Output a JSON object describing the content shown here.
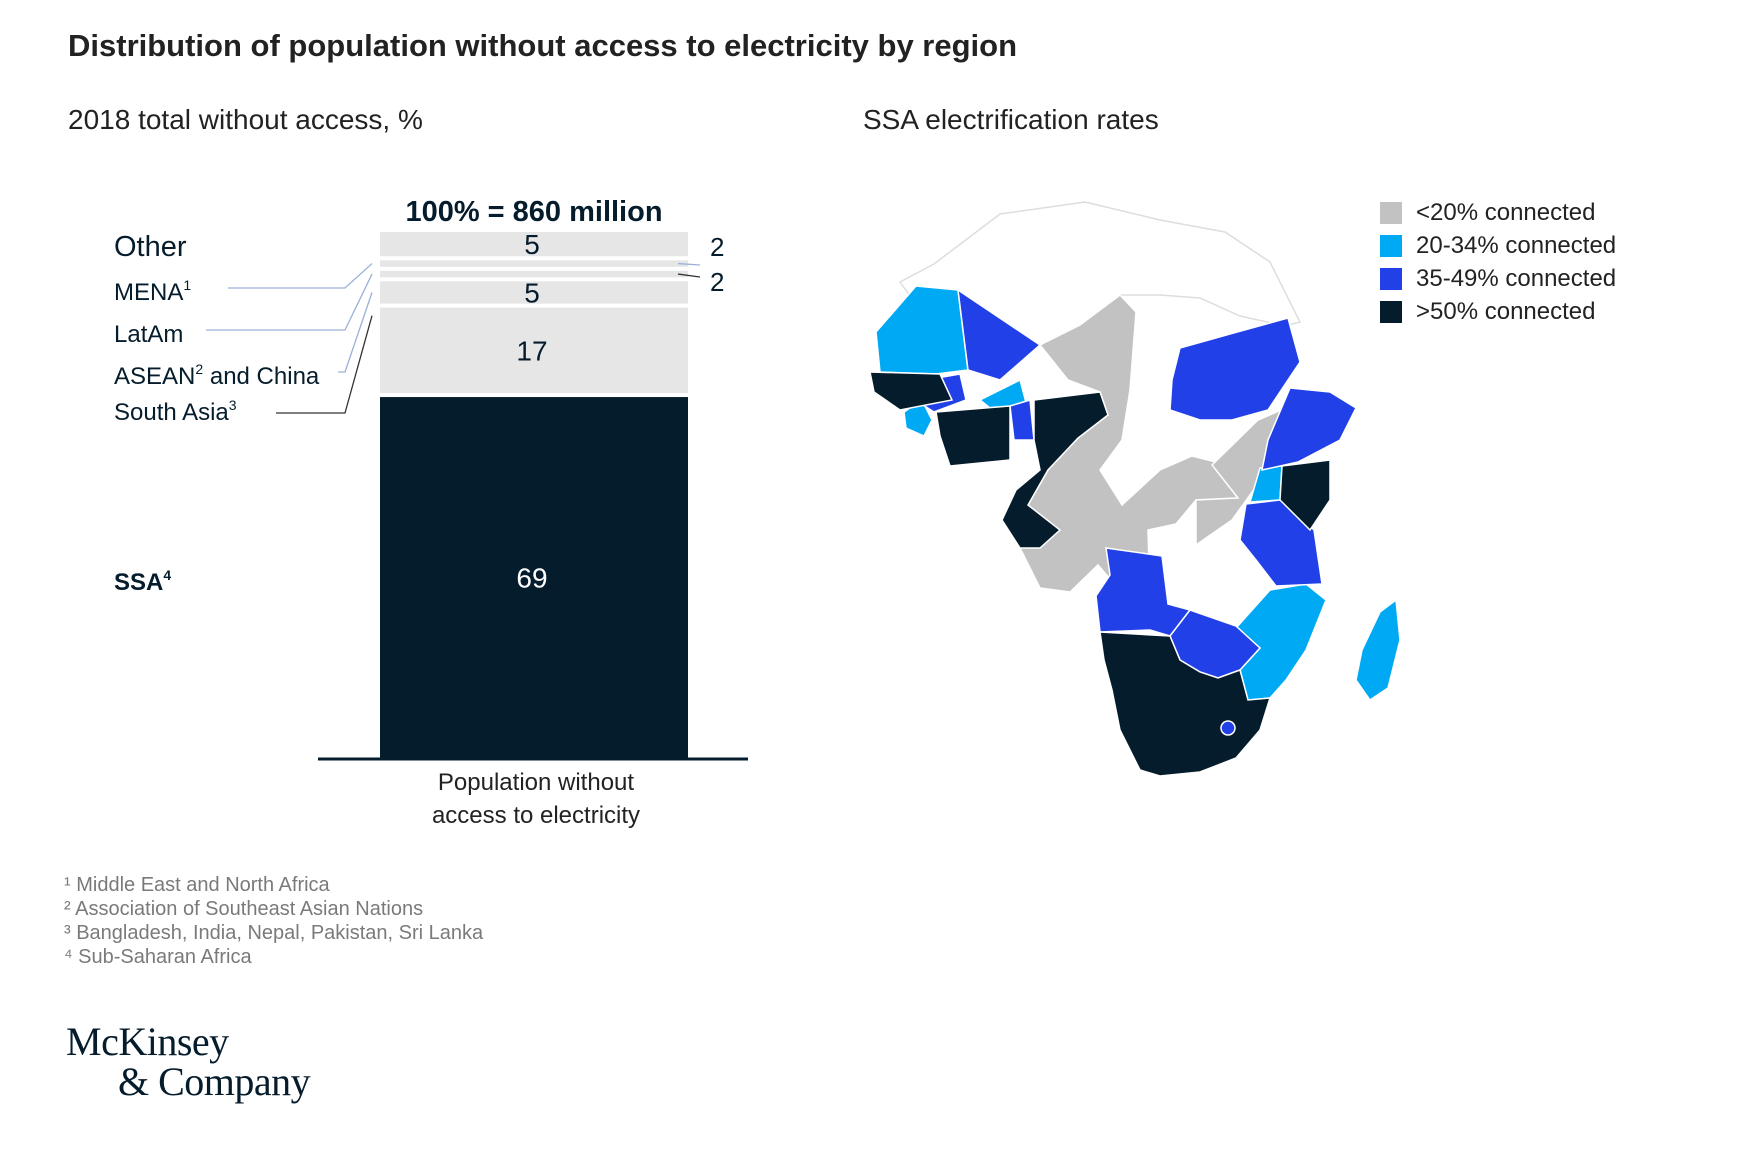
{
  "title": "Distribution of population without access to electricity by region",
  "left_subtitle": "2018 total without access, %",
  "right_subtitle": "SSA electrification rates",
  "chart_data": [
    {
      "type": "bar",
      "stacked": true,
      "title": "2018 total without access, %",
      "total_label": "100% = 860 million",
      "categories": [
        "Population without access to electricity"
      ],
      "xlabel": "Population without access to electricity",
      "ylabel": "",
      "ylim": [
        0,
        100
      ],
      "series": [
        {
          "name": "SSA",
          "sup": "4",
          "values": [
            69
          ],
          "color": "#051c2c",
          "label_color": "#ffffff"
        },
        {
          "name": "South Asia",
          "sup": "3",
          "values": [
            17
          ],
          "color": "#e6e6e6",
          "label_color": "#051c2c"
        },
        {
          "name": "ASEAN",
          "sup": "2",
          "suffix": " and China",
          "values": [
            5
          ],
          "color": "#e6e6e6",
          "label_color": "#051c2c"
        },
        {
          "name": "LatAm",
          "sup": "",
          "values": [
            2
          ],
          "color": "#e6e6e6",
          "label_color": "#051c2c"
        },
        {
          "name": "MENA",
          "sup": "1",
          "values": [
            2
          ],
          "color": "#e6e6e6",
          "label_color": "#051c2c"
        },
        {
          "name": "Other",
          "sup": "",
          "values": [
            5
          ],
          "color": "#e6e6e6",
          "label_color": "#051c2c"
        }
      ]
    },
    {
      "type": "map",
      "title": "SSA electrification rates",
      "legend": [
        {
          "label": "<20% connected",
          "color": "#c2c2c2"
        },
        {
          "label": "20-34% connected",
          "color": "#00a9f4"
        },
        {
          "label": "35-49% connected",
          "color": "#2140e8"
        },
        {
          "label": ">50% connected",
          "color": "#051c2c"
        }
      ]
    }
  ],
  "footnotes": [
    "¹ Middle East and North Africa",
    "² Association of Southeast Asian Nations",
    "³ Bangladesh, India, Nepal, Pakistan, Sri Lanka",
    "⁴ Sub-Saharan Africa"
  ],
  "logo": {
    "line1": "McKinsey",
    "line2": "& Company"
  }
}
